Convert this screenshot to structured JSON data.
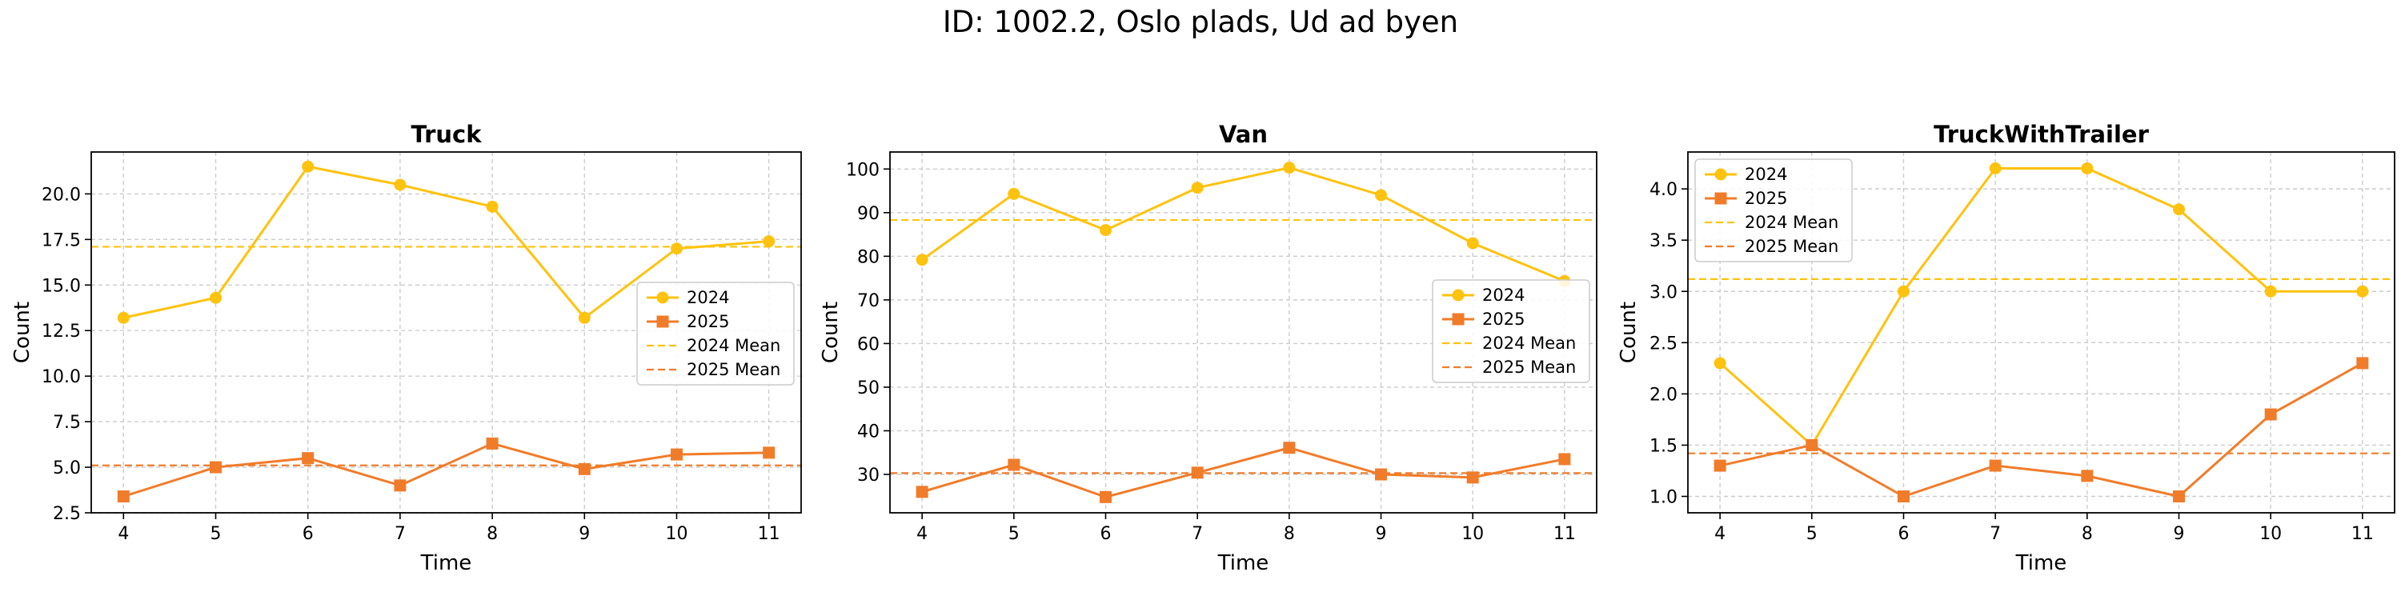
{
  "suptitle": "ID: 1002.2, Oslo plads, Ud ad byen",
  "colors": {
    "y2024": "#FFC20E",
    "y2025": "#F07C2A",
    "grid": "#cccccc",
    "axis": "#000000"
  },
  "chart_data": [
    {
      "type": "line",
      "title": "Truck",
      "xlabel": "Time",
      "ylabel": "Count",
      "x": [
        4,
        5,
        6,
        7,
        8,
        9,
        10,
        11
      ],
      "xticks": [
        "4",
        "5",
        "6",
        "7",
        "8",
        "9",
        "10",
        "11"
      ],
      "ylim": [
        2.5,
        22.3
      ],
      "yticks": [
        2.5,
        5.0,
        7.5,
        10.0,
        12.5,
        15.0,
        17.5,
        20.0
      ],
      "ytick_labels": [
        "2.5",
        "5.0",
        "7.5",
        "10.0",
        "12.5",
        "15.0",
        "17.5",
        "20.0"
      ],
      "series": [
        {
          "name": "2024",
          "marker": "circle",
          "values": [
            13.2,
            14.3,
            21.5,
            20.5,
            19.3,
            13.2,
            17.0,
            17.4
          ]
        },
        {
          "name": "2025",
          "marker": "square",
          "values": [
            3.4,
            5.0,
            5.5,
            4.0,
            6.3,
            4.9,
            5.7,
            5.8
          ]
        }
      ],
      "means": [
        {
          "name": "2024 Mean",
          "value": 17.1
        },
        {
          "name": "2025 Mean",
          "value": 5.1
        }
      ],
      "legend": "center-right",
      "grid": true
    },
    {
      "type": "line",
      "title": "Van",
      "xlabel": "Time",
      "ylabel": "Count",
      "x": [
        4,
        5,
        6,
        7,
        8,
        9,
        10,
        11
      ],
      "xticks": [
        "4",
        "5",
        "6",
        "7",
        "8",
        "9",
        "10",
        "11"
      ],
      "ylim": [
        21.2,
        103.9
      ],
      "yticks": [
        30,
        40,
        50,
        60,
        70,
        80,
        90,
        100
      ],
      "ytick_labels": [
        "30",
        "40",
        "50",
        "60",
        "70",
        "80",
        "90",
        "100"
      ],
      "series": [
        {
          "name": "2024",
          "marker": "circle",
          "values": [
            79.2,
            94.3,
            86.0,
            95.7,
            100.3,
            94.0,
            83.0,
            74.3
          ]
        },
        {
          "name": "2025",
          "marker": "square",
          "values": [
            26.0,
            32.2,
            24.8,
            30.4,
            36.1,
            30.0,
            29.3,
            33.5
          ]
        }
      ],
      "means": [
        {
          "name": "2024 Mean",
          "value": 88.3
        },
        {
          "name": "2025 Mean",
          "value": 30.3
        }
      ],
      "legend": "center-right",
      "grid": true
    },
    {
      "type": "line",
      "title": "TruckWithTrailer",
      "xlabel": "Time",
      "ylabel": "Count",
      "x": [
        4,
        5,
        6,
        7,
        8,
        9,
        10,
        11
      ],
      "xticks": [
        "4",
        "5",
        "6",
        "7",
        "8",
        "9",
        "10",
        "11"
      ],
      "ylim": [
        0.84,
        4.36
      ],
      "yticks": [
        1.0,
        1.5,
        2.0,
        2.5,
        3.0,
        3.5,
        4.0
      ],
      "ytick_labels": [
        "1.0",
        "1.5",
        "2.0",
        "2.5",
        "3.0",
        "3.5",
        "4.0"
      ],
      "series": [
        {
          "name": "2024",
          "marker": "circle",
          "values": [
            2.3,
            1.5,
            3.0,
            4.2,
            4.2,
            3.8,
            3.0,
            3.0
          ]
        },
        {
          "name": "2025",
          "marker": "square",
          "values": [
            1.3,
            1.5,
            1.0,
            1.3,
            1.2,
            1.0,
            1.8,
            2.3
          ]
        }
      ],
      "means": [
        {
          "name": "2024 Mean",
          "value": 3.12
        },
        {
          "name": "2025 Mean",
          "value": 1.42
        }
      ],
      "legend": "upper-left",
      "grid": true
    }
  ]
}
